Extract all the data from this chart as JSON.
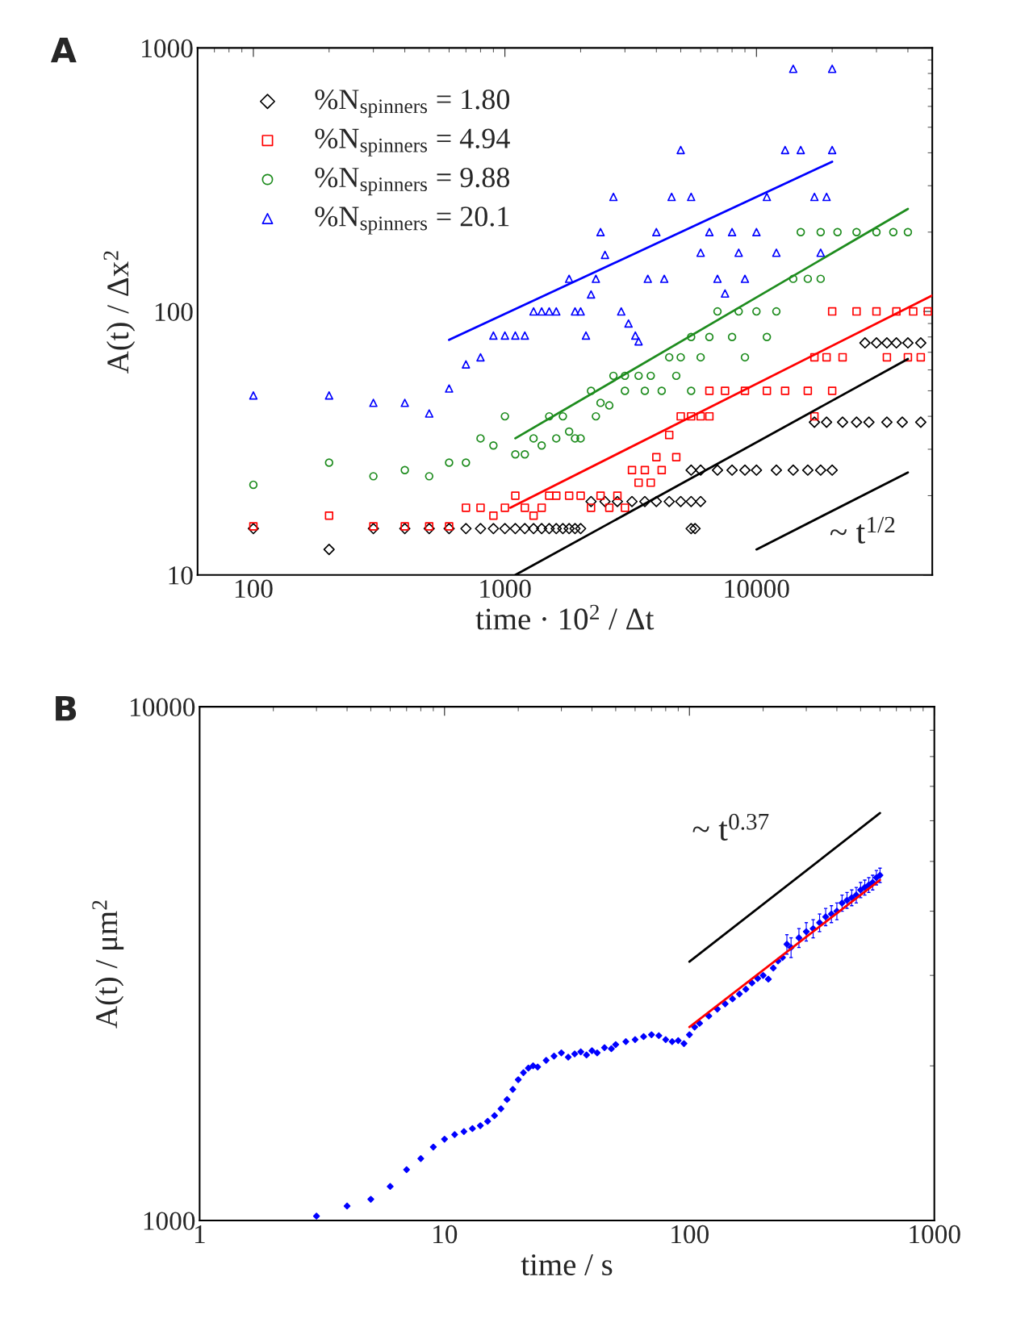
{
  "chart_data": [
    {
      "type": "scatter",
      "title": "A",
      "xlabel": "time · 10$^{2}$ / Δt",
      "ylabel": "A(t) / Δx$^{2}$",
      "log": "xy",
      "grid": false,
      "legend": "top left",
      "xlim": [
        60,
        50000
      ],
      "xticks": [
        100,
        1000,
        10000
      ],
      "ylim": [
        10,
        1000
      ],
      "yticks": [
        10,
        100,
        1000
      ],
      "annotations": [
        "~ t$^{1/2}$"
      ],
      "series": [
        {
          "name": "%N$_{spinners}$ = 1.80",
          "marker": "diamond",
          "color": "#000000",
          "x": [
            100,
            200,
            300,
            400,
            500,
            600,
            700,
            800,
            900,
            1000,
            1100,
            1200,
            1300,
            1400,
            1500,
            1600,
            1700,
            1800,
            1900,
            2000,
            2200,
            2500,
            2800,
            3200,
            3600,
            4000,
            4500,
            5000,
            5500,
            6000,
            5500,
            5700,
            5500,
            6000,
            7000,
            8000,
            9000,
            10000,
            12000,
            14000,
            16000,
            18000,
            20000,
            17000,
            19000,
            22000,
            25000,
            28000,
            33000,
            38000,
            45000,
            27000,
            30000,
            33000,
            36000,
            40000,
            45000
          ],
          "values": [
            15,
            12.5,
            15,
            15,
            15,
            15,
            15,
            15,
            15,
            15,
            15,
            15,
            15,
            15,
            15,
            15,
            15,
            15,
            15,
            15,
            19,
            19,
            19,
            19,
            19,
            19,
            19,
            19,
            19,
            19,
            15,
            15,
            25,
            25,
            25,
            25,
            25,
            25,
            25,
            25,
            25,
            25,
            25,
            38,
            38,
            38,
            38,
            38,
            38,
            38,
            38,
            76,
            76,
            76,
            76,
            76,
            76
          ]
        },
        {
          "name": "%N$_{spinners}$ = 4.94",
          "marker": "square",
          "color": "#ff0000",
          "x": [
            100,
            200,
            300,
            400,
            500,
            600,
            700,
            800,
            900,
            1000,
            1100,
            1200,
            1300,
            1400,
            1500,
            1600,
            1800,
            2000,
            2200,
            2400,
            2600,
            2800,
            3000,
            3200,
            3400,
            3600,
            3800,
            4000,
            4200,
            4500,
            4800,
            5000,
            5500,
            6000,
            6500,
            6500,
            7500,
            9000,
            11000,
            13000,
            16000,
            20000,
            17000,
            17000,
            19000,
            22000,
            20000,
            25000,
            30000,
            36000,
            42000,
            48000,
            33000,
            40000,
            45000
          ],
          "values": [
            15.3,
            16.8,
            15.3,
            15.3,
            15.3,
            15.3,
            18,
            18,
            16.8,
            18,
            20,
            18,
            16.8,
            18,
            20,
            20,
            20,
            20,
            18,
            20,
            18,
            20,
            18,
            25,
            22.4,
            25,
            22.4,
            28,
            25,
            34,
            28,
            40,
            40,
            40,
            40,
            50,
            50,
            50,
            50,
            50,
            50,
            50,
            40,
            67,
            67,
            67,
            100,
            100,
            100,
            100,
            100,
            100,
            67,
            67,
            67
          ]
        },
        {
          "name": "%N$_{spinners}$ = 9.88",
          "marker": "circle",
          "color": "#1e8c1e",
          "x": [
            100,
            200,
            300,
            400,
            500,
            600,
            700,
            800,
            900,
            1000,
            1100,
            1200,
            1300,
            1400,
            1500,
            1600,
            1700,
            1800,
            1900,
            2000,
            2200,
            2300,
            2400,
            2600,
            2700,
            3000,
            3000,
            3400,
            3600,
            3800,
            4200,
            4500,
            4800,
            5000,
            5500,
            5500,
            6000,
            6500,
            7000,
            8000,
            8500,
            9000,
            10000,
            11000,
            12000,
            14000,
            16000,
            18000,
            15000,
            18000,
            21000,
            25000,
            30000,
            35000,
            40000
          ],
          "values": [
            22,
            26.7,
            23.7,
            25,
            23.7,
            26.7,
            26.7,
            33,
            31,
            40,
            28.7,
            28.7,
            33,
            31,
            40,
            33,
            40,
            35,
            33,
            33,
            50,
            40,
            45,
            44,
            57,
            57,
            50,
            57,
            50,
            57,
            50,
            67,
            57,
            67,
            50,
            80,
            67,
            80,
            100,
            80,
            100,
            67,
            100,
            80,
            100,
            133,
            133,
            133,
            200,
            200,
            200,
            200,
            200,
            200,
            200
          ]
        },
        {
          "name": "%N$_{spinners}$ = 20.1",
          "marker": "triangle",
          "color": "#0000ff",
          "x": [
            100,
            200,
            300,
            400,
            500,
            600,
            700,
            800,
            900,
            1000,
            1100,
            1200,
            1300,
            1400,
            1500,
            1600,
            1800,
            1900,
            2000,
            2100,
            2200,
            2300,
            2400,
            2500,
            2700,
            2900,
            3100,
            3300,
            3400,
            3700,
            4000,
            4300,
            4600,
            5000,
            5500,
            6000,
            6500,
            7000,
            7500,
            8000,
            8500,
            9000,
            10000,
            11000,
            12000,
            13000,
            14000,
            15000,
            17000,
            18000,
            20000,
            20000,
            19000
          ],
          "values": [
            48,
            48,
            45,
            45,
            41,
            51,
            63,
            67,
            81,
            81,
            81,
            81,
            100,
            100,
            100,
            100,
            133,
            100,
            100,
            81,
            116,
            133,
            200,
            164,
            272,
            100,
            90,
            81,
            77,
            133,
            200,
            133,
            272,
            410,
            272,
            167,
            200,
            133,
            117,
            200,
            167,
            133,
            200,
            272,
            167,
            410,
            833,
            410,
            272,
            167,
            410,
            833,
            272
          ]
        },
        {
          "type": "line",
          "color": "#000000",
          "x": [
            1100,
            40000
          ],
          "values": [
            10,
            66
          ]
        },
        {
          "type": "line",
          "color": "#ff0000",
          "x": [
            1050,
            50000
          ],
          "values": [
            18,
            115
          ]
        },
        {
          "type": "line",
          "color": "#1e8c1e",
          "x": [
            1100,
            40000
          ],
          "values": [
            33,
            245
          ]
        },
        {
          "type": "line",
          "color": "#0000ff",
          "x": [
            600,
            20000
          ],
          "values": [
            78,
            370
          ]
        },
        {
          "type": "line",
          "color": "#000000",
          "x": [
            10000,
            40000
          ],
          "values": [
            12.5,
            24.5
          ]
        }
      ]
    },
    {
      "type": "scatter",
      "title": "B",
      "xlabel": "time / s",
      "ylabel": "A(t) / μm$^{2}$",
      "log": "xy",
      "grid": false,
      "xlim": [
        1,
        1000
      ],
      "xticks": [
        1,
        10,
        100,
        1000
      ],
      "ylim": [
        1000,
        10000
      ],
      "yticks": [
        1000,
        10000
      ],
      "annotations": [
        "~ t$^{0.37}$"
      ],
      "series": [
        {
          "marker": "diamond",
          "color": "#0000ff",
          "x": [
            3,
            4,
            5,
            6,
            7,
            8,
            9,
            10,
            11,
            12,
            13,
            14,
            15,
            16,
            17,
            18,
            19,
            20,
            21,
            22,
            23,
            24,
            26,
            28,
            30,
            32,
            34,
            36,
            38,
            40,
            42,
            45,
            48,
            50,
            55,
            60,
            65,
            70,
            75,
            80,
            85,
            90,
            95,
            100,
            105,
            110,
            120,
            130,
            140,
            150,
            160,
            170,
            180,
            190,
            200,
            210,
            220,
            230,
            240,
            250,
            260,
            280,
            300,
            320,
            340,
            360,
            380,
            400,
            420,
            440,
            460,
            480,
            500,
            520,
            540,
            560,
            580,
            600
          ],
          "values": [
            1020,
            1067,
            1100,
            1165,
            1256,
            1320,
            1390,
            1440,
            1470,
            1490,
            1510,
            1530,
            1560,
            1600,
            1650,
            1720,
            1800,
            1880,
            1940,
            1980,
            2000,
            1990,
            2050,
            2090,
            2120,
            2080,
            2110,
            2130,
            2100,
            2140,
            2120,
            2170,
            2160,
            2200,
            2230,
            2250,
            2280,
            2300,
            2290,
            2250,
            2230,
            2240,
            2210,
            2300,
            2380,
            2420,
            2500,
            2580,
            2640,
            2700,
            2760,
            2820,
            2900,
            2960,
            3000,
            2950,
            3100,
            3200,
            3250,
            3450,
            3400,
            3550,
            3650,
            3700,
            3800,
            3900,
            3950,
            4000,
            4150,
            4200,
            4250,
            4300,
            4400,
            4450,
            4500,
            4550,
            4650,
            4700
          ],
          "errors": [
            null,
            null,
            null,
            null,
            null,
            null,
            null,
            null,
            null,
            null,
            null,
            null,
            null,
            null,
            null,
            null,
            null,
            null,
            null,
            null,
            null,
            null,
            null,
            null,
            null,
            null,
            null,
            null,
            null,
            null,
            null,
            null,
            null,
            null,
            null,
            null,
            null,
            null,
            null,
            null,
            null,
            null,
            null,
            null,
            null,
            null,
            null,
            null,
            null,
            null,
            null,
            null,
            null,
            null,
            null,
            null,
            null,
            null,
            null,
            150,
            150,
            150,
            150,
            150,
            150,
            150,
            150,
            150,
            150,
            150,
            150,
            150,
            150,
            150,
            150,
            150,
            150,
            150
          ]
        },
        {
          "type": "line",
          "color": "#ff0000",
          "x": [
            100,
            600
          ],
          "values": [
            2380,
            4600
          ]
        },
        {
          "type": "line",
          "color": "#000000",
          "x": [
            100,
            600
          ],
          "values": [
            3190,
            6210
          ]
        }
      ]
    }
  ]
}
